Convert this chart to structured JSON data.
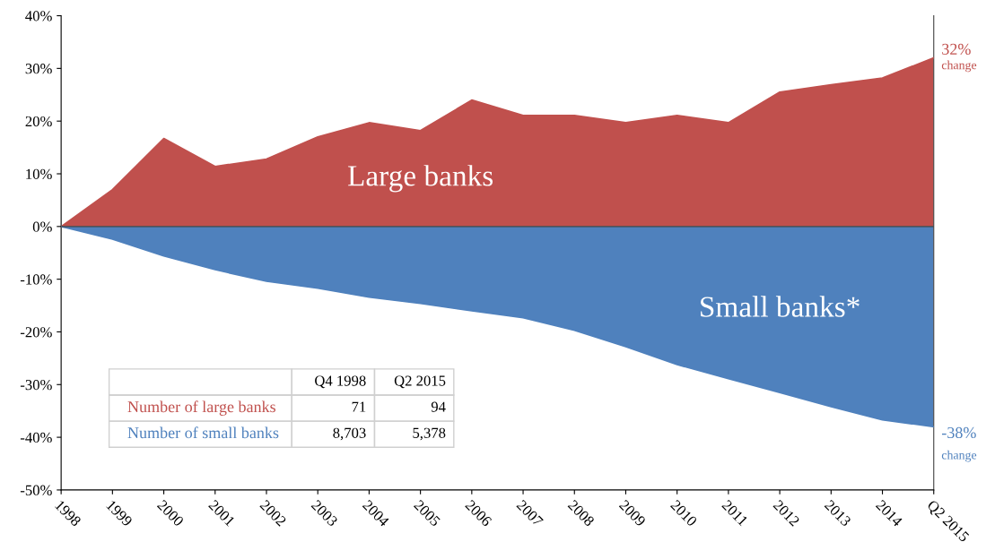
{
  "chart_data": {
    "type": "area",
    "categories": [
      "1998",
      "1999",
      "2000",
      "2001",
      "2002",
      "2003",
      "2004",
      "2005",
      "2006",
      "2007",
      "2008",
      "2009",
      "2010",
      "2011",
      "2012",
      "2013",
      "2014",
      "Q2 2015"
    ],
    "series": [
      {
        "name": "Large banks",
        "color": "#c0504d",
        "values": [
          0,
          7,
          16.7,
          11.4,
          12.8,
          17,
          19.7,
          18.2,
          24,
          21.1,
          21.1,
          19.7,
          21.1,
          19.7,
          25.5,
          26.9,
          28.2,
          32
        ]
      },
      {
        "name": "Small banks*",
        "color": "#4f81bd",
        "values": [
          0,
          -2.4,
          -5.6,
          -8.2,
          -10.4,
          -11.7,
          -13.4,
          -14.6,
          -16,
          -17.3,
          -19.7,
          -22.8,
          -26.2,
          -28.9,
          -31.5,
          -34.2,
          -36.7,
          -38
        ]
      }
    ],
    "ylim": [
      -50,
      40
    ],
    "yticks": [
      {
        "value": -50,
        "label": "-50%"
      },
      {
        "value": -40,
        "label": "-40%"
      },
      {
        "value": -30,
        "label": "-30%"
      },
      {
        "value": -20,
        "label": "-20%"
      },
      {
        "value": -10,
        "label": "-10%"
      },
      {
        "value": 0,
        "label": "0%"
      },
      {
        "value": 10,
        "label": "10%"
      },
      {
        "value": 20,
        "label": "20%"
      },
      {
        "value": 30,
        "label": "30%"
      },
      {
        "value": 40,
        "label": "40%"
      }
    ],
    "annotations": [
      {
        "text": "32%\nchange",
        "x": "Q2 2015",
        "y": 32
      },
      {
        "text": "-38%\nchange",
        "x": "Q2 2015",
        "y": -38
      },
      "Q4 1998",
      "Q2 2015",
      "Number of large banks",
      "71",
      "94",
      "Number of small banks",
      "8,703",
      "5,378"
    ]
  }
}
